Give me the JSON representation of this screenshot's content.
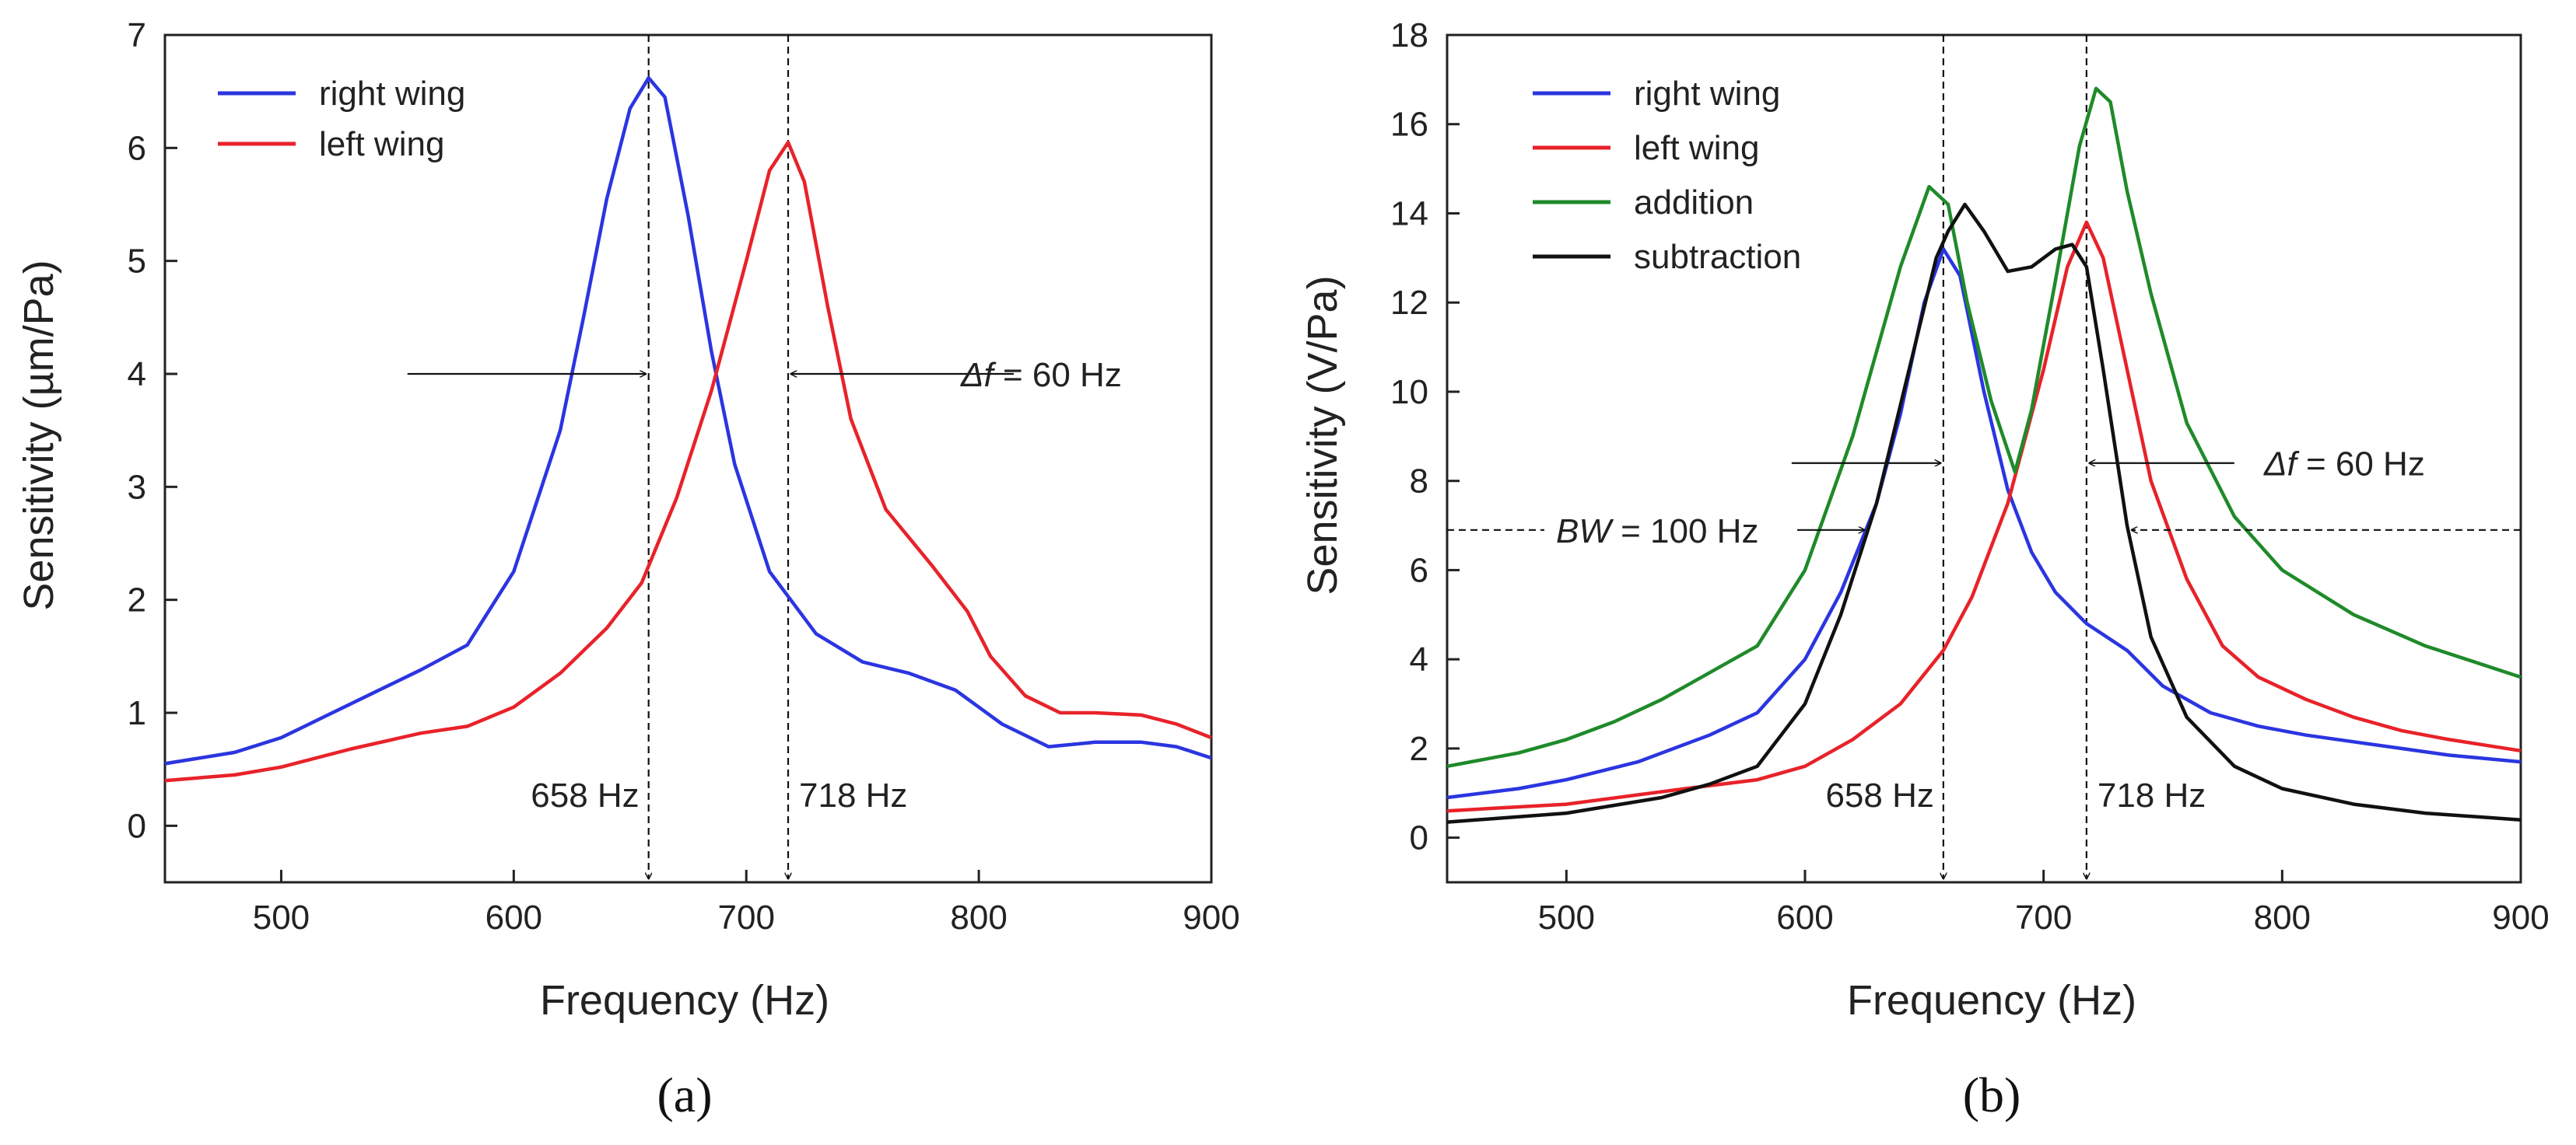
{
  "chart_data": [
    {
      "type": "line",
      "panel_label": "(a)",
      "xlabel": "Frequency (Hz)",
      "ylabel": "Sensitivity (µm/Pa)",
      "xlim": [
        450,
        900
      ],
      "ylim": [
        -0.5,
        7
      ],
      "x_ticks": [
        500,
        600,
        700,
        800,
        900
      ],
      "y_ticks": [
        0,
        1,
        2,
        3,
        4,
        5,
        6,
        7
      ],
      "grid": false,
      "legend_position": "top-left",
      "series": [
        {
          "name": "right wing",
          "color": "#2b35e0",
          "x": [
            450,
            480,
            500,
            520,
            540,
            560,
            580,
            600,
            620,
            630,
            640,
            650,
            658,
            665,
            675,
            685,
            695,
            710,
            730,
            750,
            770,
            790,
            810,
            830,
            850,
            870,
            885,
            900
          ],
          "y": [
            0.55,
            0.65,
            0.78,
            0.98,
            1.18,
            1.38,
            1.6,
            2.25,
            3.5,
            4.5,
            5.55,
            6.35,
            6.62,
            6.45,
            5.4,
            4.2,
            3.2,
            2.25,
            1.7,
            1.45,
            1.35,
            1.2,
            0.9,
            0.7,
            0.74,
            0.74,
            0.7,
            0.6
          ]
        },
        {
          "name": "left wing",
          "color": "#e8222a",
          "x": [
            450,
            480,
            500,
            530,
            560,
            580,
            600,
            620,
            640,
            655,
            670,
            685,
            700,
            710,
            718,
            725,
            735,
            745,
            760,
            780,
            795,
            805,
            820,
            835,
            850,
            870,
            885,
            900
          ],
          "y": [
            0.4,
            0.45,
            0.52,
            0.68,
            0.82,
            0.88,
            1.05,
            1.35,
            1.75,
            2.15,
            2.9,
            3.85,
            5.0,
            5.8,
            6.05,
            5.7,
            4.6,
            3.6,
            2.8,
            2.3,
            1.9,
            1.5,
            1.15,
            1.0,
            1.0,
            0.98,
            0.9,
            0.78
          ]
        }
      ],
      "markers": [
        {
          "x": 658,
          "label": "658 Hz"
        },
        {
          "x": 718,
          "label": "718 Hz"
        }
      ],
      "annotations": [
        {
          "label": "Δf",
          "text": " = 60 Hz",
          "y": 4.0
        }
      ]
    },
    {
      "type": "line",
      "panel_label": "(b)",
      "xlabel": "Frequency (Hz)",
      "ylabel": "Sensitivity (V/Pa)",
      "xlim": [
        450,
        900
      ],
      "ylim": [
        -1,
        18
      ],
      "x_ticks": [
        500,
        600,
        700,
        800,
        900
      ],
      "y_ticks": [
        0,
        2,
        4,
        6,
        8,
        10,
        12,
        14,
        16,
        18
      ],
      "grid": false,
      "legend_position": "top-left",
      "series": [
        {
          "name": "right wing",
          "color": "#2b35e0",
          "x": [
            450,
            480,
            500,
            530,
            560,
            580,
            600,
            615,
            630,
            640,
            650,
            658,
            665,
            675,
            685,
            695,
            705,
            718,
            735,
            750,
            770,
            790,
            810,
            830,
            850,
            870,
            900
          ],
          "y": [
            0.9,
            1.1,
            1.3,
            1.7,
            2.3,
            2.8,
            4.0,
            5.5,
            7.5,
            9.5,
            12.0,
            13.2,
            12.6,
            10.0,
            7.8,
            6.4,
            5.5,
            4.8,
            4.2,
            3.4,
            2.8,
            2.5,
            2.3,
            2.15,
            2.0,
            1.85,
            1.7
          ]
        },
        {
          "name": "left wing",
          "color": "#e8222a",
          "x": [
            450,
            500,
            550,
            580,
            600,
            620,
            640,
            658,
            670,
            685,
            700,
            710,
            718,
            725,
            735,
            745,
            760,
            775,
            790,
            810,
            830,
            850,
            870,
            900
          ],
          "y": [
            0.6,
            0.75,
            1.1,
            1.3,
            1.6,
            2.2,
            3.0,
            4.2,
            5.4,
            7.5,
            10.5,
            12.8,
            13.8,
            13.0,
            10.5,
            8.0,
            5.8,
            4.3,
            3.6,
            3.1,
            2.7,
            2.4,
            2.2,
            1.95
          ]
        },
        {
          "name": "addition",
          "color": "#1f8a2a",
          "x": [
            450,
            480,
            500,
            520,
            540,
            560,
            580,
            600,
            620,
            640,
            652,
            660,
            668,
            678,
            688,
            695,
            705,
            715,
            722,
            728,
            735,
            745,
            760,
            780,
            800,
            830,
            860,
            900
          ],
          "y": [
            1.6,
            1.9,
            2.2,
            2.6,
            3.1,
            3.7,
            4.3,
            6.0,
            9.0,
            12.8,
            14.6,
            14.2,
            12.0,
            9.8,
            8.2,
            9.6,
            12.5,
            15.5,
            16.8,
            16.5,
            14.5,
            12.2,
            9.3,
            7.2,
            6.0,
            5.0,
            4.3,
            3.6
          ]
        },
        {
          "name": "subtraction",
          "color": "#111111",
          "x": [
            450,
            500,
            540,
            560,
            580,
            600,
            615,
            630,
            645,
            655,
            660,
            667,
            675,
            685,
            695,
            705,
            712,
            718,
            725,
            735,
            745,
            760,
            780,
            800,
            830,
            860,
            900
          ],
          "y": [
            0.35,
            0.55,
            0.9,
            1.2,
            1.6,
            3.0,
            5.0,
            7.5,
            10.8,
            13.0,
            13.6,
            14.2,
            13.6,
            12.7,
            12.8,
            13.2,
            13.3,
            12.8,
            10.5,
            7.0,
            4.5,
            2.7,
            1.6,
            1.1,
            0.75,
            0.55,
            0.4
          ]
        }
      ],
      "markers": [
        {
          "x": 658,
          "label": "658 Hz"
        },
        {
          "x": 718,
          "label": "718 Hz"
        }
      ],
      "annotations": [
        {
          "label": "Δf",
          "text": " = 60 Hz",
          "y": 8.4
        },
        {
          "label": "BW",
          "text": " = 100 Hz",
          "y": 6.9
        }
      ]
    }
  ]
}
